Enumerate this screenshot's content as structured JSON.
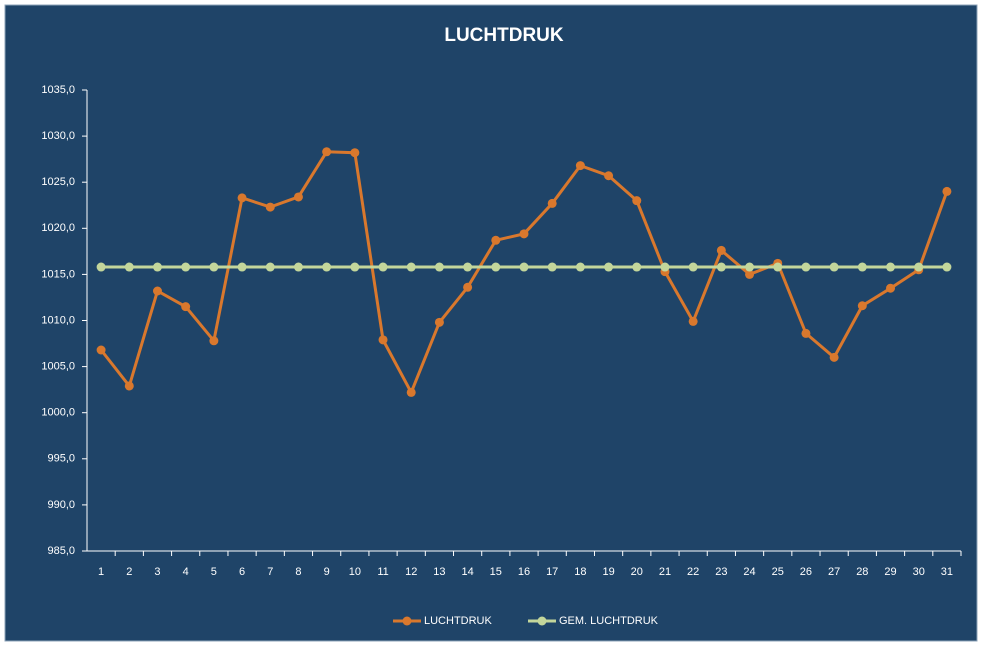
{
  "chart_data": {
    "type": "line",
    "title": "LUCHTDRUK",
    "categories": [
      "1",
      "2",
      "3",
      "4",
      "5",
      "6",
      "7",
      "8",
      "9",
      "10",
      "11",
      "12",
      "13",
      "14",
      "15",
      "16",
      "17",
      "18",
      "19",
      "20",
      "21",
      "22",
      "23",
      "24",
      "25",
      "26",
      "27",
      "28",
      "29",
      "30",
      "31"
    ],
    "series": [
      {
        "name": "LUCHTDRUK",
        "color": "#d9782d",
        "values": [
          1006.8,
          1002.9,
          1013.2,
          1011.5,
          1007.8,
          1023.3,
          1022.3,
          1023.4,
          1028.3,
          1028.2,
          1007.9,
          1002.2,
          1009.8,
          1013.6,
          1018.7,
          1019.4,
          1022.7,
          1026.8,
          1025.7,
          1023.0,
          1015.3,
          1009.9,
          1017.6,
          1015.0,
          1016.2,
          1008.6,
          1006.0,
          1011.6,
          1013.5,
          1015.5,
          1024.0
        ]
      },
      {
        "name": "GEM. LUCHTDRUK",
        "color": "#c3d69b",
        "values": [
          1015.8,
          1015.8,
          1015.8,
          1015.8,
          1015.8,
          1015.8,
          1015.8,
          1015.8,
          1015.8,
          1015.8,
          1015.8,
          1015.8,
          1015.8,
          1015.8,
          1015.8,
          1015.8,
          1015.8,
          1015.8,
          1015.8,
          1015.8,
          1015.8,
          1015.8,
          1015.8,
          1015.8,
          1015.8,
          1015.8,
          1015.8,
          1015.8,
          1015.8,
          1015.8,
          1015.8
        ]
      }
    ],
    "ylim": [
      985,
      1035
    ],
    "yticks": [
      {
        "value": 985,
        "label": "985,0"
      },
      {
        "value": 990,
        "label": "990,0"
      },
      {
        "value": 995,
        "label": "995,0"
      },
      {
        "value": 1000,
        "label": "1000,0"
      },
      {
        "value": 1005,
        "label": "1005,0"
      },
      {
        "value": 1010,
        "label": "1010,0"
      },
      {
        "value": 1015,
        "label": "1015,0"
      },
      {
        "value": 1020,
        "label": "1020,0"
      },
      {
        "value": 1025,
        "label": "1025,0"
      },
      {
        "value": 1030,
        "label": "1030,0"
      },
      {
        "value": 1035,
        "label": "1035,0"
      }
    ],
    "grid": false,
    "legend": "bottom"
  }
}
